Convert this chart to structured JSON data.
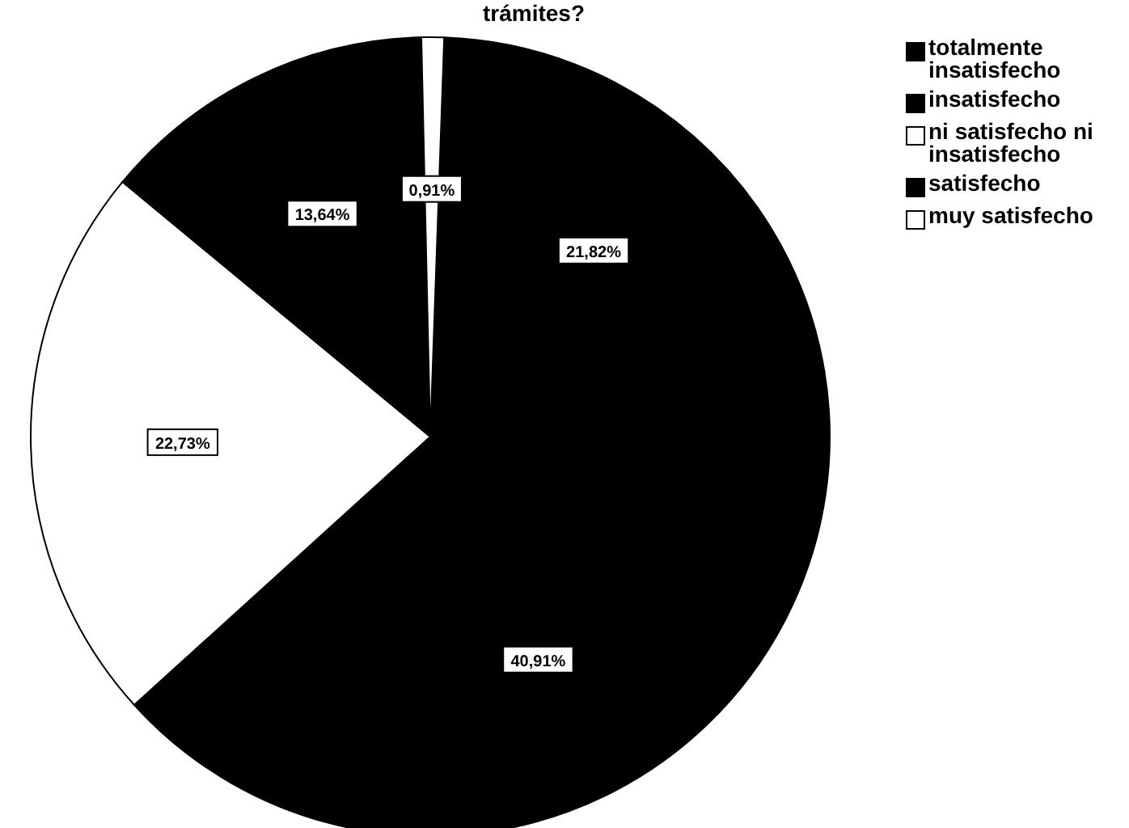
{
  "chart_data": {
    "type": "pie",
    "title": "trámites?",
    "categories": [
      "totalmente insatisfecho",
      "insatisfecho",
      "ni satisfecho ni insatisfecho",
      "satisfecho",
      "muy satisfecho"
    ],
    "values": [
      21.82,
      40.91,
      22.73,
      13.64,
      0.91
    ],
    "colors": [
      "#000000",
      "#000000",
      "#ffffff",
      "#000000",
      "#ffffff"
    ],
    "value_labels": [
      "21,82%",
      "40,91%",
      "22,73%",
      "13,64%",
      "0,91%"
    ],
    "legend": "top right"
  }
}
